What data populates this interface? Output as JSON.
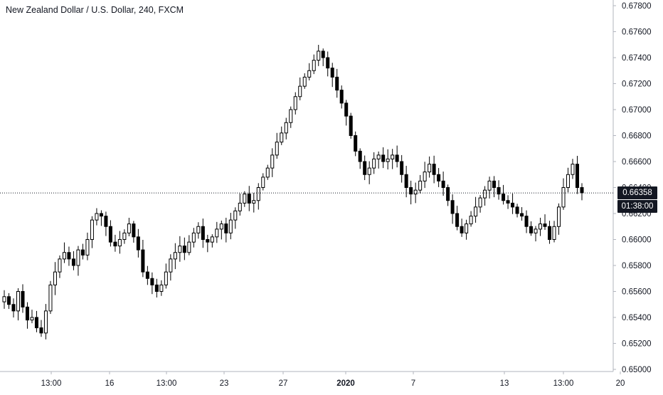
{
  "chart_data": {
    "type": "candlestick",
    "title": "New Zealand Dollar / U.S. Dollar, 240, FXCM",
    "y_ticks": [
      "0.67800",
      "0.67600",
      "0.67400",
      "0.67200",
      "0.67000",
      "0.66800",
      "0.66600",
      "0.66400",
      "0.66200",
      "0.66000",
      "0.65800",
      "0.65600",
      "0.65400",
      "0.65200",
      "0.65000"
    ],
    "ylim": [
      0.65,
      0.678
    ],
    "x_ticks": [
      "13:00",
      "16",
      "13:00",
      "23",
      "27",
      "2020",
      "7",
      "13",
      "13:00",
      "20"
    ],
    "last_price": 0.66358,
    "last_price_label": "0.66358",
    "countdown_label": "01:38:00",
    "grid": false,
    "colors": {
      "up_body": "#ffffff",
      "down_body": "#000000",
      "wick": "#000000"
    },
    "close_series": [
      0.6556,
      0.655,
      0.6545,
      0.656,
      0.6548,
      0.6538,
      0.654,
      0.6532,
      0.6528,
      0.6545,
      0.6565,
      0.6575,
      0.6585,
      0.659,
      0.6585,
      0.658,
      0.6592,
      0.6588,
      0.66,
      0.6615,
      0.662,
      0.6618,
      0.661,
      0.6598,
      0.6595,
      0.66,
      0.6605,
      0.6612,
      0.6602,
      0.6592,
      0.6575,
      0.657,
      0.6565,
      0.656,
      0.6565,
      0.6575,
      0.6585,
      0.659,
      0.6595,
      0.659,
      0.6598,
      0.6605,
      0.661,
      0.66,
      0.6598,
      0.6602,
      0.6608,
      0.6612,
      0.6605,
      0.6615,
      0.6622,
      0.6628,
      0.6635,
      0.6628,
      0.663,
      0.664,
      0.6648,
      0.6655,
      0.6665,
      0.6675,
      0.6682,
      0.669,
      0.67,
      0.671,
      0.6718,
      0.6725,
      0.673,
      0.6738,
      0.6745,
      0.674,
      0.6732,
      0.6725,
      0.6715,
      0.6705,
      0.6695,
      0.668,
      0.6668,
      0.666,
      0.665,
      0.6655,
      0.6662,
      0.6665,
      0.666,
      0.6662,
      0.6665,
      0.666,
      0.665,
      0.664,
      0.6635,
      0.6638,
      0.6645,
      0.6652,
      0.6658,
      0.665,
      0.6645,
      0.664,
      0.663,
      0.662,
      0.661,
      0.6605,
      0.6612,
      0.6618,
      0.6625,
      0.6632,
      0.6638,
      0.6645,
      0.664,
      0.6635,
      0.663,
      0.6628,
      0.6625,
      0.662,
      0.6618,
      0.661,
      0.6605,
      0.6608,
      0.6612,
      0.661,
      0.66,
      0.661,
      0.6625,
      0.664,
      0.665,
      0.6658,
      0.664,
      0.6636
    ]
  }
}
